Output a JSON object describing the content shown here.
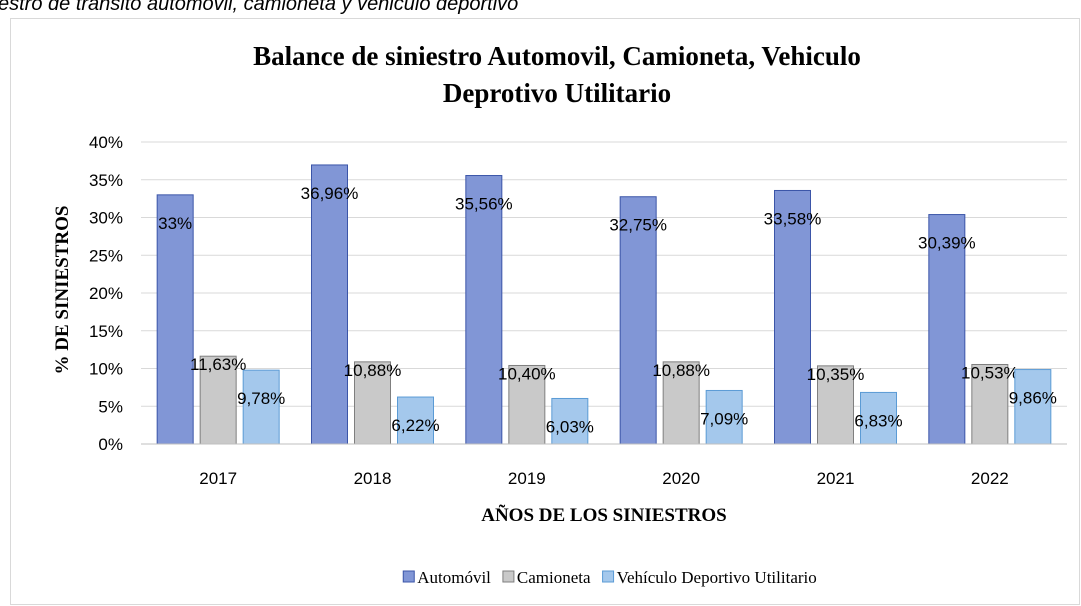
{
  "caption": "estro de transito automovil, camioneta y vehiculo deportivo",
  "chart_data": {
    "type": "bar",
    "title": [
      "Balance de siniestro Automovil, Camioneta, Vehiculo",
      "Deprotivo Utilitario"
    ],
    "x_label": "AÑOS DE LOS SINIESTROS",
    "y_label": "% DE SINIESTROS",
    "categories": [
      "2017",
      "2018",
      "2019",
      "2020",
      "2021",
      "2022"
    ],
    "series": [
      {
        "name": "Automóvil",
        "color": "#8196d6",
        "stroke": "#3b55a8",
        "values": [
          33,
          36.96,
          35.56,
          32.75,
          33.58,
          30.39
        ],
        "value_labels": [
          "33%",
          "36,96%",
          "35,56%",
          "32,75%",
          "33,58%",
          "30,39%"
        ]
      },
      {
        "name": "Camioneta",
        "color": "#c9c9c9",
        "stroke": "#7f7f7f",
        "values": [
          11.63,
          10.88,
          10.4,
          10.88,
          10.35,
          10.53
        ],
        "value_labels": [
          "11,63%",
          "10,88%",
          "10,40%",
          "10,88%",
          "10,35%",
          "10,53%"
        ]
      },
      {
        "name": "Vehículo Deportivo Utilitario",
        "color": "#a4c8ec",
        "stroke": "#5b9bd5",
        "values": [
          9.78,
          6.22,
          6.03,
          7.09,
          6.83,
          9.86
        ],
        "value_labels": [
          "9,78%",
          "6,22%",
          "6,03%",
          "7,09%",
          "6,83%",
          "9,86%"
        ]
      }
    ],
    "ylim": [
      0,
      40
    ],
    "yticks": [
      {
        "value": 0,
        "label": "0%"
      },
      {
        "value": 5,
        "label": "5%"
      },
      {
        "value": 10,
        "label": "10%"
      },
      {
        "value": 15,
        "label": "15%"
      },
      {
        "value": 20,
        "label": "20%"
      },
      {
        "value": 25,
        "label": "25%"
      },
      {
        "value": 30,
        "label": "30%"
      },
      {
        "value": 35,
        "label": "35%"
      },
      {
        "value": 40,
        "label": "40%"
      }
    ],
    "grid": true,
    "legend": "bottom"
  }
}
